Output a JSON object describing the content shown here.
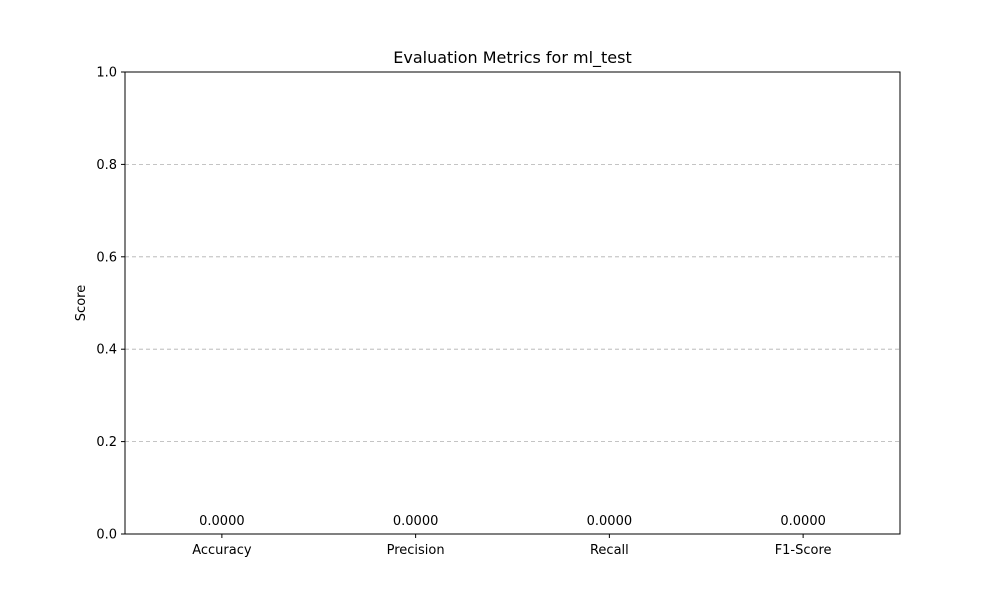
{
  "chart_data": {
    "type": "bar",
    "title": "Evaluation Metrics for ml_test",
    "xlabel": "",
    "ylabel": "Score",
    "categories": [
      "Accuracy",
      "Precision",
      "Recall",
      "F1-Score"
    ],
    "values": [
      0.0,
      0.0,
      0.0,
      0.0
    ],
    "data_labels": [
      "0.0000",
      "0.0000",
      "0.0000",
      "0.0000"
    ],
    "ylim": [
      0,
      1.0
    ],
    "yticks": [
      0.0,
      0.2,
      0.4,
      0.6,
      0.8,
      1.0
    ],
    "ytick_labels": [
      "0.0",
      "0.2",
      "0.4",
      "0.6",
      "0.8",
      "1.0"
    ],
    "grid": "y-dashed",
    "legend": "none",
    "colors": {
      "bar": "#1f77b4",
      "grid": "#b0b0b0",
      "axis": "#000000"
    }
  }
}
